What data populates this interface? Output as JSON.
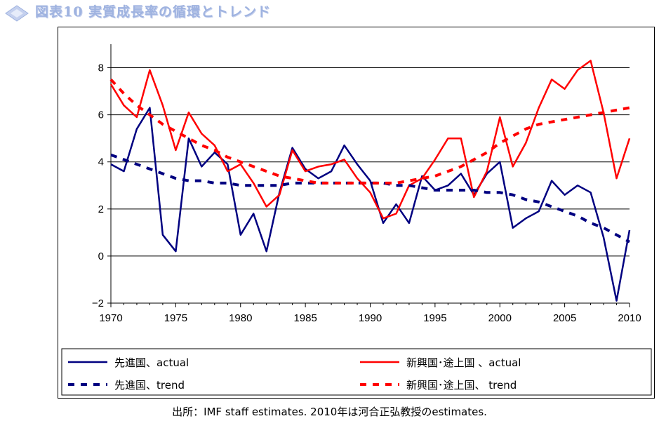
{
  "title": "図表10 実質成長率の循環とトレンド",
  "source": "出所：IMF staff estimates. 2010年は河合正弘教授のestimates.",
  "colors": {
    "advanced": "#000080",
    "emerging": "#ff0000",
    "grid": "#000000",
    "title": "#9fb3e0"
  },
  "chart_data": {
    "type": "line",
    "title": "図表10 実質成長率の循環とトレンド",
    "xlabel": "",
    "ylabel": "",
    "xlim": [
      1970,
      2010
    ],
    "ylim": [
      -2,
      9
    ],
    "xticks": [
      1970,
      1975,
      1980,
      1985,
      1990,
      1995,
      2000,
      2005,
      2010
    ],
    "yticks": [
      -2,
      0,
      2,
      4,
      6,
      8
    ],
    "x": [
      1970,
      1971,
      1972,
      1973,
      1974,
      1975,
      1976,
      1977,
      1978,
      1979,
      1980,
      1981,
      1982,
      1983,
      1984,
      1985,
      1986,
      1987,
      1988,
      1989,
      1990,
      1991,
      1992,
      1993,
      1994,
      1995,
      1996,
      1997,
      1998,
      1999,
      2000,
      2001,
      2002,
      2003,
      2004,
      2005,
      2006,
      2007,
      2008,
      2009,
      2010
    ],
    "legend_position": "bottom",
    "grid": "horizontal",
    "series": [
      {
        "name": "先進国、actual",
        "style": "solid",
        "color": "#000080",
        "values": [
          3.9,
          3.6,
          5.4,
          6.3,
          0.9,
          0.2,
          5.0,
          3.8,
          4.4,
          3.9,
          0.9,
          1.8,
          0.2,
          2.7,
          4.6,
          3.7,
          3.3,
          3.6,
          4.7,
          3.9,
          3.2,
          1.4,
          2.2,
          1.4,
          3.4,
          2.8,
          3.0,
          3.5,
          2.6,
          3.5,
          4.0,
          1.2,
          1.6,
          1.9,
          3.2,
          2.6,
          3.0,
          2.7,
          0.8,
          -1.9,
          1.1
        ]
      },
      {
        "name": "新興国･途上国 、actual",
        "style": "solid",
        "color": "#ff0000",
        "values": [
          7.3,
          6.4,
          5.9,
          7.9,
          6.4,
          4.5,
          6.1,
          5.2,
          4.7,
          3.6,
          3.9,
          3.1,
          2.1,
          2.6,
          4.5,
          3.6,
          3.8,
          3.9,
          4.1,
          3.3,
          2.7,
          1.6,
          1.8,
          3.0,
          3.3,
          4.1,
          5.0,
          5.0,
          2.5,
          3.6,
          5.9,
          3.8,
          4.8,
          6.3,
          7.5,
          7.1,
          7.9,
          8.3,
          6.1,
          3.3,
          5.0
        ]
      },
      {
        "name": "先進国、trend",
        "style": "dashed",
        "color": "#000080",
        "values": [
          4.3,
          4.1,
          3.9,
          3.7,
          3.5,
          3.3,
          3.2,
          3.2,
          3.1,
          3.1,
          3.0,
          3.0,
          3.0,
          3.0,
          3.1,
          3.1,
          3.1,
          3.1,
          3.1,
          3.1,
          3.1,
          3.1,
          3.0,
          3.0,
          2.9,
          2.8,
          2.8,
          2.8,
          2.8,
          2.7,
          2.7,
          2.6,
          2.4,
          2.3,
          2.1,
          1.9,
          1.7,
          1.4,
          1.2,
          0.9,
          0.6
        ]
      },
      {
        "name": "新興国･途上国、 trend",
        "style": "dashed",
        "color": "#ff0000",
        "values": [
          7.5,
          6.9,
          6.4,
          6.0,
          5.6,
          5.3,
          5.0,
          4.7,
          4.5,
          4.2,
          4.0,
          3.8,
          3.6,
          3.4,
          3.3,
          3.2,
          3.1,
          3.1,
          3.1,
          3.1,
          3.1,
          3.1,
          3.1,
          3.2,
          3.3,
          3.4,
          3.6,
          3.8,
          4.1,
          4.4,
          4.8,
          5.1,
          5.4,
          5.6,
          5.7,
          5.8,
          5.9,
          6.0,
          6.1,
          6.2,
          6.3
        ]
      }
    ]
  }
}
